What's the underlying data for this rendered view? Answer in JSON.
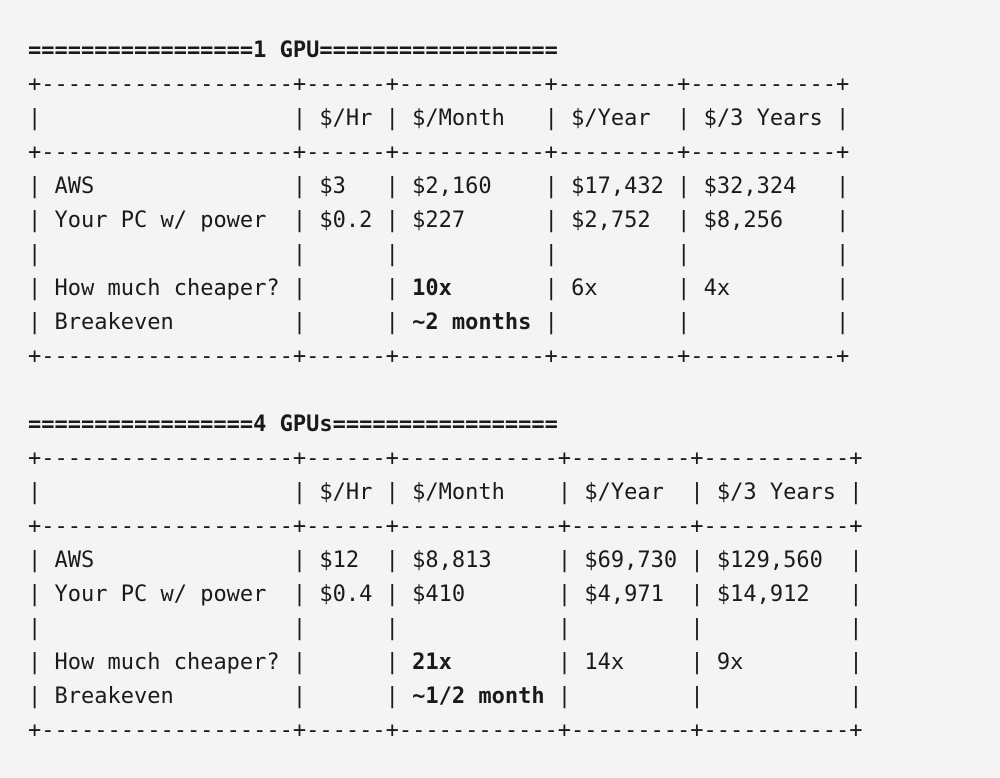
{
  "tables": [
    {
      "title": "1 GPU",
      "headers": [
        "",
        "$/Hr",
        "$/Month",
        "$/Year",
        "$/3 Years"
      ],
      "rows": [
        [
          "AWS",
          "$3",
          "$2,160",
          "$17,432",
          "$32,324"
        ],
        [
          "Your PC w/ power",
          "$0.2",
          "$227",
          "$2,752",
          "$8,256"
        ],
        [
          "",
          "",
          "",
          "",
          ""
        ],
        [
          "How much cheaper?",
          "",
          "10x",
          "6x",
          "4x"
        ],
        [
          "Breakeven",
          "",
          "~2 months",
          "",
          ""
        ]
      ],
      "bold_cells": [
        [
          3,
          2
        ],
        [
          4,
          2
        ]
      ]
    },
    {
      "title": "4 GPUs",
      "headers": [
        "",
        "$/Hr",
        "$/Month",
        "$/Year",
        "$/3 Years"
      ],
      "rows": [
        [
          "AWS",
          "$12",
          "$8,813",
          "$69,730",
          "$129,560"
        ],
        [
          "Your PC w/ power",
          "$0.4",
          "$410",
          "$4,971",
          "$14,912"
        ],
        [
          "",
          "",
          "",
          "",
          ""
        ],
        [
          "How much cheaper?",
          "",
          "21x",
          "14x",
          "9x"
        ],
        [
          "Breakeven",
          "",
          "~1/2 month",
          "",
          ""
        ]
      ],
      "bold_cells": [
        [
          3,
          2
        ],
        [
          4,
          2
        ]
      ]
    }
  ]
}
